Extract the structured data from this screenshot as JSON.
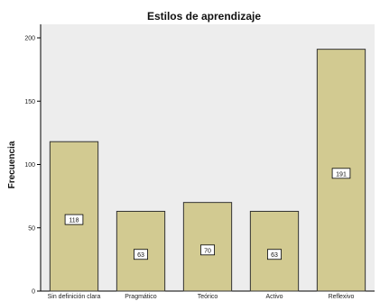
{
  "chart_data": {
    "type": "bar",
    "title": "Estilos de aprendizaje",
    "ylabel": "Frecuencia",
    "xlabel": "",
    "categories": [
      "Sin definición clara",
      "Pragmático",
      "Teórico",
      "Activo",
      "Reflexivo"
    ],
    "values": [
      118,
      63,
      70,
      63,
      191
    ],
    "data_labels": [
      "118",
      "63",
      "70",
      "63",
      "191"
    ],
    "yticks": [
      0,
      50,
      100,
      150,
      200
    ],
    "ylim": [
      0,
      200
    ],
    "grid": false,
    "legend": "none",
    "colors": {
      "bar_fill": "#D2CA91",
      "bar_stroke": "#333333",
      "plot_background": "#EDEDED",
      "label_box": "#FFFFFF"
    }
  }
}
